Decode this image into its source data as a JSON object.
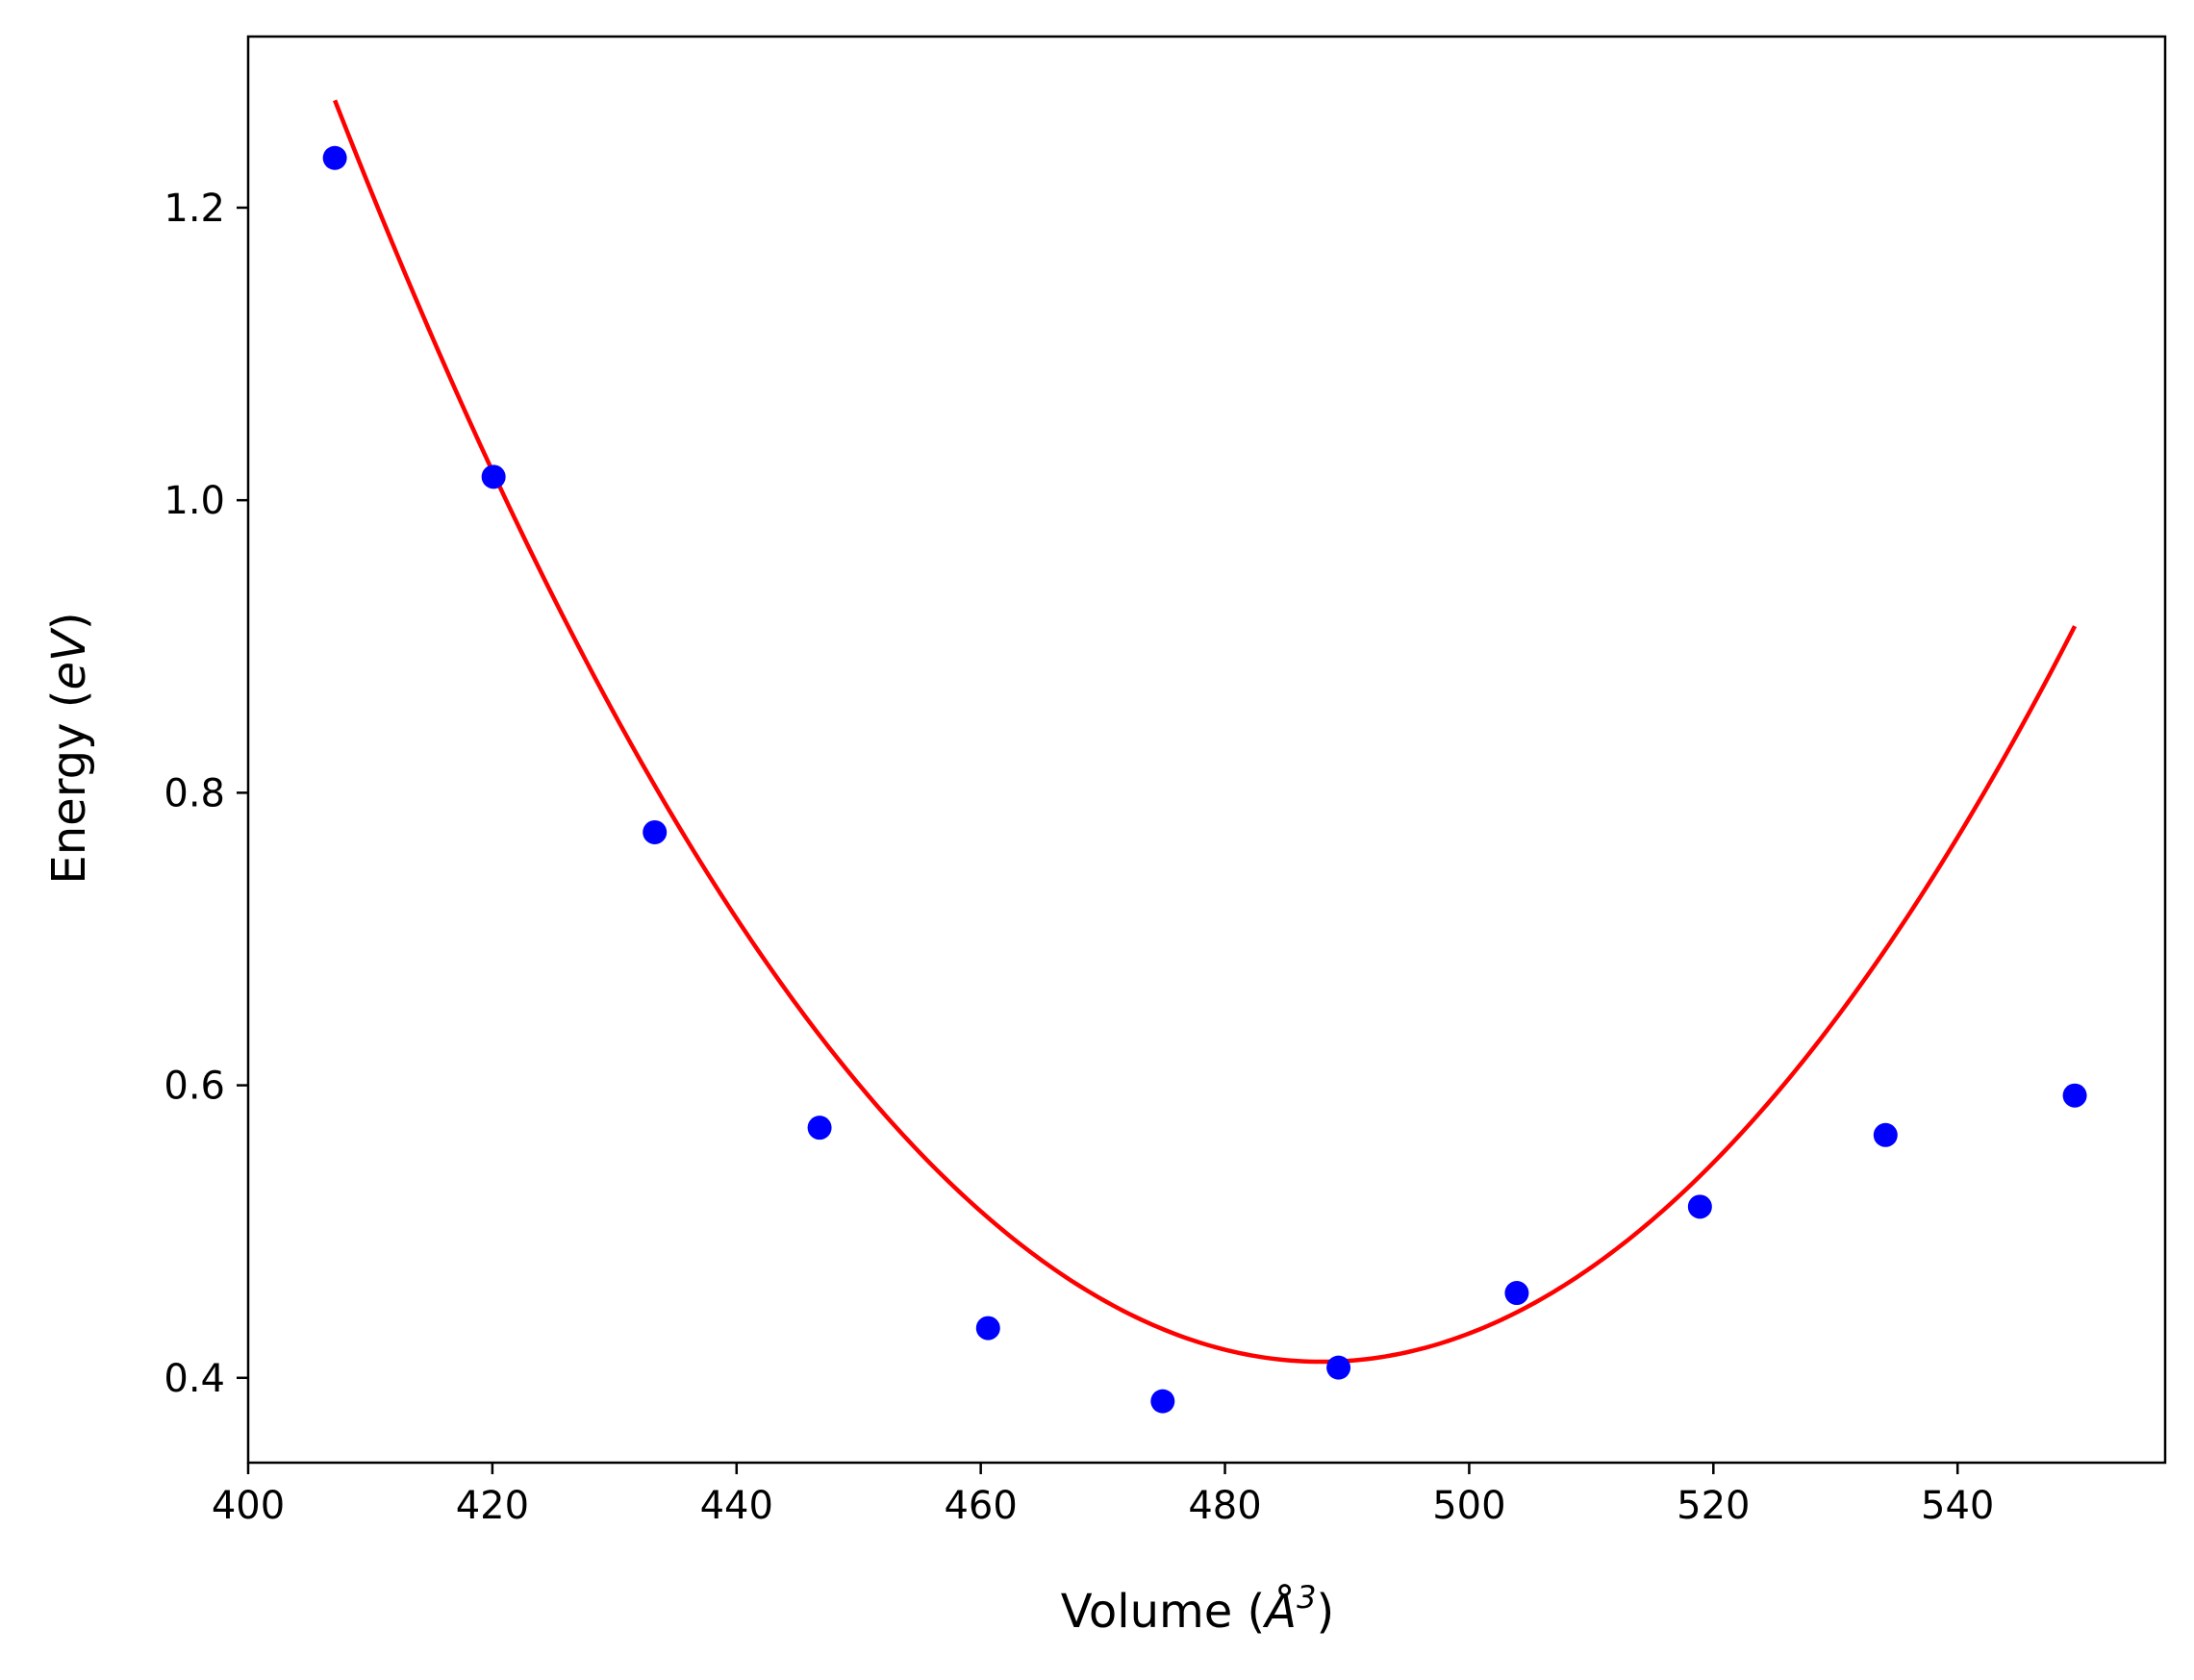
{
  "chart_data": {
    "type": "scatter",
    "xlabel": "Volume (",
    "xlabel_symbol": "Å",
    "xlabel_exp": "3",
    "xlabel_close": ")",
    "ylabel": "Energy (",
    "ylabel_symbol": "eV",
    "ylabel_close": ")",
    "xlim": [
      400,
      557
    ],
    "ylim": [
      0.342,
      1.317
    ],
    "xticks": [
      400,
      420,
      440,
      460,
      480,
      500,
      520,
      540
    ],
    "yticks": [
      0.4,
      0.6,
      0.8,
      1.0,
      1.2
    ],
    "grid": false,
    "series": [
      {
        "type": "scatter",
        "color": "#0000ff",
        "points": [
          {
            "x": 407.1,
            "y": 1.234
          },
          {
            "x": 420.1,
            "y": 1.016
          },
          {
            "x": 433.3,
            "y": 0.773
          },
          {
            "x": 446.8,
            "y": 0.571
          },
          {
            "x": 460.6,
            "y": 0.434
          },
          {
            "x": 474.9,
            "y": 0.384
          },
          {
            "x": 489.3,
            "y": 0.407
          },
          {
            "x": 503.9,
            "y": 0.458
          },
          {
            "x": 518.9,
            "y": 0.517
          },
          {
            "x": 534.1,
            "y": 0.566
          },
          {
            "x": 549.6,
            "y": 0.593
          }
        ]
      },
      {
        "type": "line",
        "color": "#ff0000",
        "fit": {
          "form": "quadratic",
          "vertex_x": 487.9,
          "vertex_y": 0.411,
          "coefficient": 0.0001321
        },
        "x_range": [
          407.1,
          549.6
        ]
      }
    ]
  }
}
